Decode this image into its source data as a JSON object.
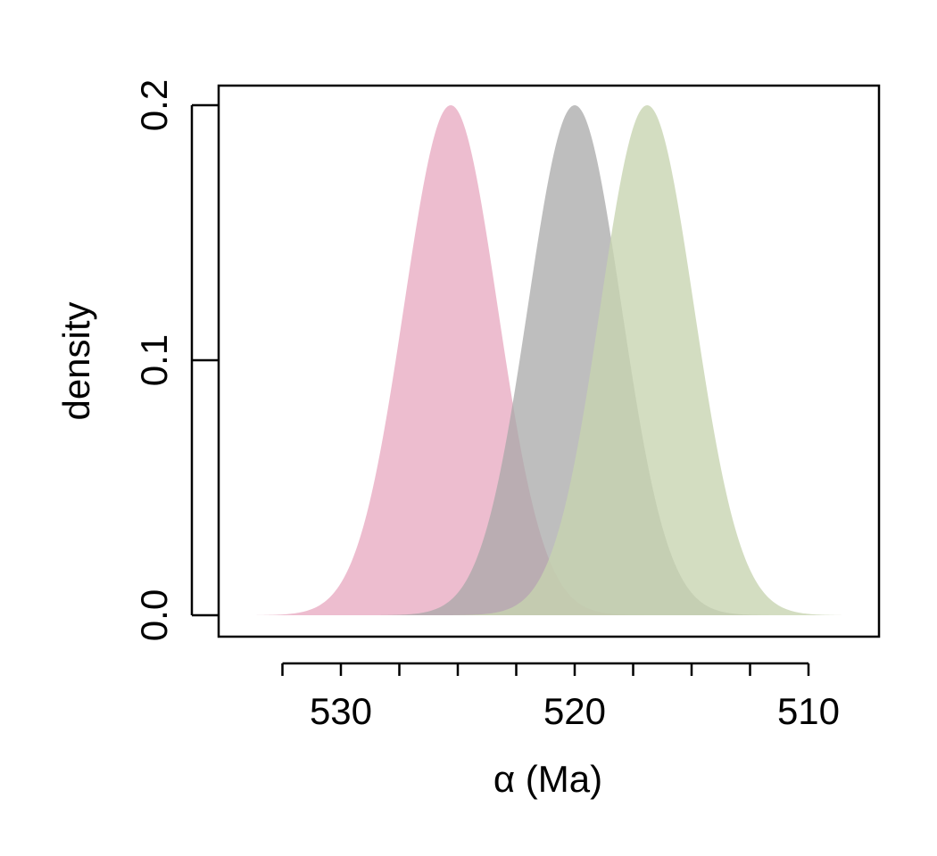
{
  "chart_data": {
    "type": "area",
    "title": "",
    "xlabel": "α (Ma)",
    "ylabel": "density",
    "x_reversed": true,
    "xlim": [
      534,
      509
    ],
    "ylim": [
      0,
      0.2
    ],
    "x_ticks": [
      532.5,
      530,
      527.5,
      525,
      522.5,
      520,
      517.5,
      515,
      512.5,
      510
    ],
    "x_tick_labels": [
      {
        "value": 530,
        "label": "530"
      },
      {
        "value": 520,
        "label": "520"
      },
      {
        "value": 510,
        "label": "510"
      }
    ],
    "y_ticks": [
      {
        "value": 0.0,
        "label": "0.0"
      },
      {
        "value": 0.1,
        "label": "0.1"
      },
      {
        "value": 0.2,
        "label": "0.2"
      }
    ],
    "grid": false,
    "legend": "none",
    "series": [
      {
        "mean": 525.3,
        "sd": 2.0,
        "peak": 0.2,
        "range": [
          533.6,
          517.0
        ],
        "color": "#e8aac2",
        "opacity": 0.78
      },
      {
        "mean": 520.0,
        "sd": 2.0,
        "peak": 0.2,
        "range": [
          528.3,
          511.7
        ],
        "color": "#a8a8a8",
        "opacity": 0.75
      },
      {
        "mean": 516.9,
        "sd": 2.0,
        "peak": 0.2,
        "range": [
          525.2,
          508.6
        ],
        "color": "#c6d4b0",
        "opacity": 0.78
      }
    ]
  }
}
